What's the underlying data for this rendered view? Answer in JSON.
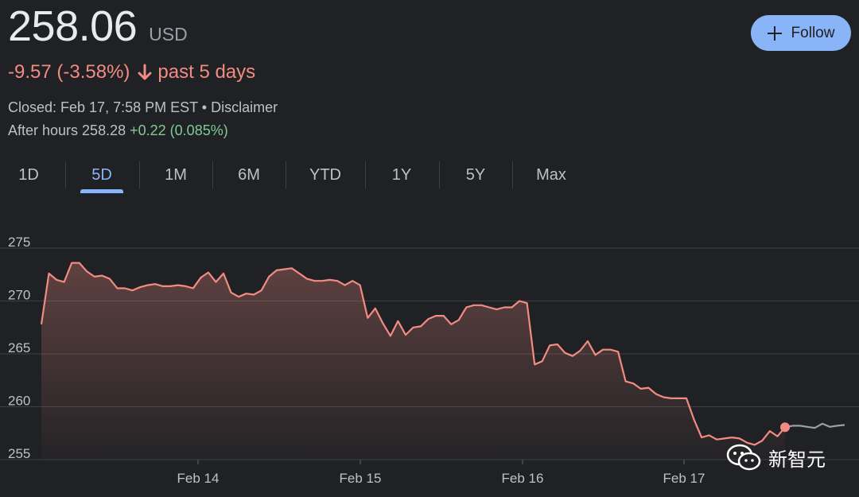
{
  "header": {
    "price": "258.06",
    "currency": "USD",
    "change": "-9.57 (-3.58%)",
    "change_period": "past 5 days",
    "closed_text": "Closed: Feb 17, 7:58 PM EST • Disclaimer",
    "after_hours_label": "After hours 258.28",
    "after_hours_change": "+0.22 (0.085%)",
    "follow_label": "Follow"
  },
  "tabs": [
    "1D",
    "5D",
    "1M",
    "6M",
    "YTD",
    "1Y",
    "5Y",
    "Max"
  ],
  "active_tab": "5D",
  "watermark": {
    "text": "新智元"
  },
  "colors": {
    "background": "#202124",
    "line": "#f28b82",
    "after_hours_line": "#9aa0a6",
    "accent": "#8ab4f8",
    "negative": "#f28b82",
    "positive": "#81c995"
  },
  "chart_data": {
    "type": "line",
    "y_ticks": [
      255,
      260,
      265,
      270,
      275
    ],
    "ylim": [
      255,
      276
    ],
    "x_ticks": [
      "Feb 14",
      "Feb 15",
      "Feb 16",
      "Feb 17"
    ],
    "grid": true,
    "fill_area": true,
    "series": [
      {
        "segment": "regular",
        "values": [
          267.8,
          272.6,
          272.0,
          271.8,
          273.6,
          273.6,
          272.8,
          272.3,
          272.4,
          272.1,
          271.2,
          271.2,
          271.0,
          271.3,
          271.5,
          271.6,
          271.4,
          271.4,
          271.5,
          271.4,
          271.2,
          272.2,
          272.7,
          271.8,
          272.6,
          270.8,
          270.4,
          270.7,
          270.6,
          271.0,
          272.3,
          272.9,
          273.0,
          273.1,
          272.6,
          272.1,
          271.9,
          271.9,
          272.0,
          271.9,
          271.5,
          271.9,
          271.5,
          268.4,
          269.3,
          267.9,
          266.7,
          268.1,
          266.8,
          267.5,
          267.6,
          268.3,
          268.6,
          268.6,
          267.8,
          268.2,
          269.4,
          269.6,
          269.6,
          269.4,
          269.2,
          269.4,
          269.4,
          270.0,
          269.8,
          264.0,
          264.3,
          265.8,
          265.9,
          265.1,
          264.8,
          265.3,
          266.2,
          264.9,
          265.4,
          265.4,
          265.2,
          262.4,
          262.2,
          261.7,
          261.8,
          261.2,
          260.9,
          260.8,
          260.8,
          260.8,
          258.8,
          257.1,
          257.3,
          256.9,
          257.0,
          257.1,
          257.0,
          256.6,
          256.4,
          256.8,
          257.7,
          257.2,
          258.06
        ]
      },
      {
        "segment": "after-hours",
        "values": [
          258.06,
          258.2,
          258.2,
          258.1,
          258.0,
          258.4,
          258.1,
          258.2,
          258.28
        ]
      }
    ]
  }
}
